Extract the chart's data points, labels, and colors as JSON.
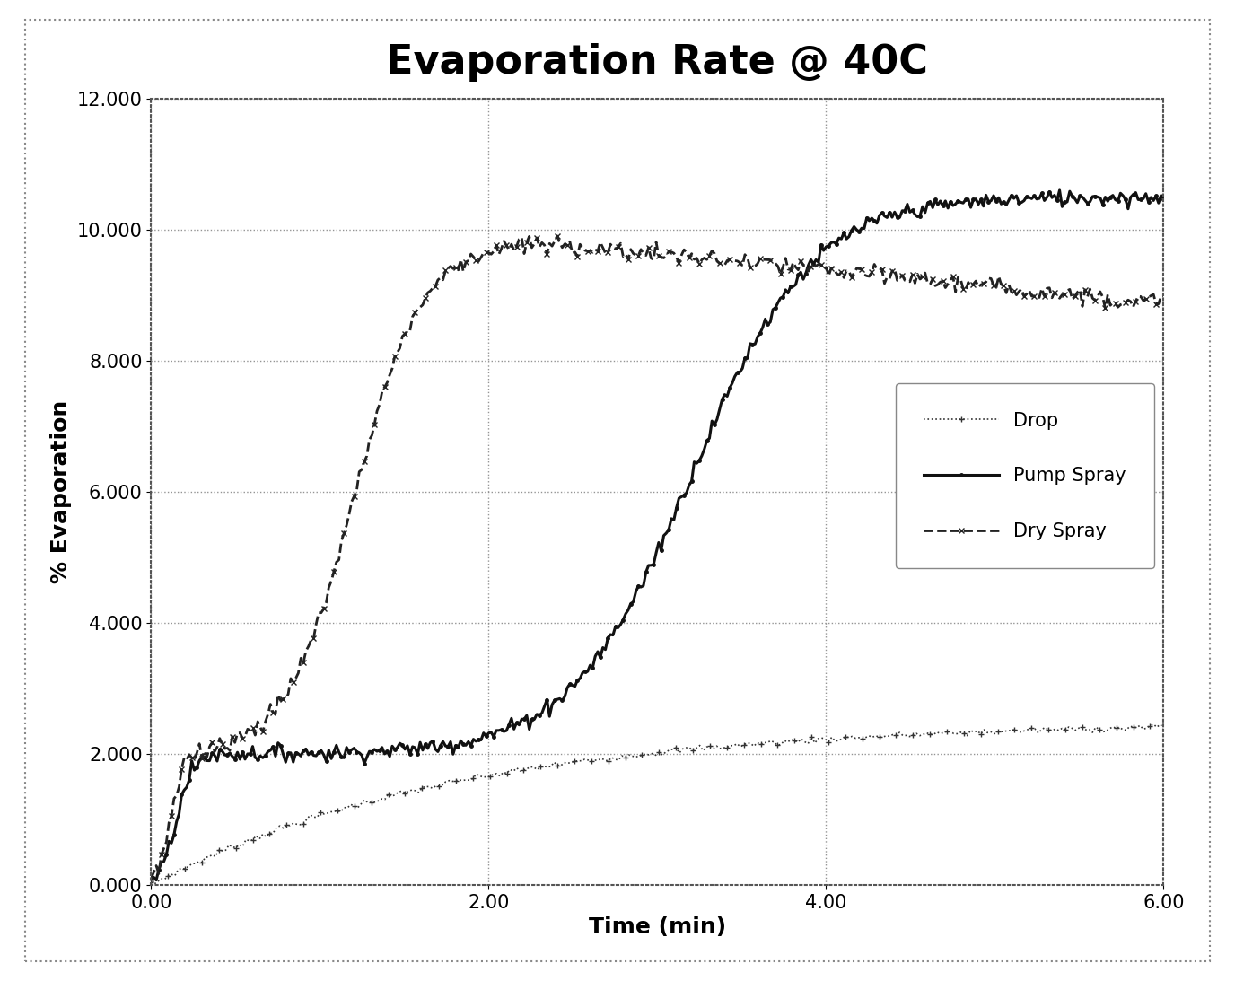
{
  "title": "Evaporation Rate @ 40C",
  "xlabel": "Time (min)",
  "ylabel": "% Evaporation",
  "xlim": [
    0.0,
    6.0
  ],
  "ylim": [
    0.0,
    12.0
  ],
  "xticks": [
    0.0,
    2.0,
    4.0,
    6.0
  ],
  "yticks": [
    0.0,
    2.0,
    4.0,
    6.0,
    8.0,
    10.0,
    12.0
  ],
  "xtick_labels": [
    "0.00",
    "2.00",
    "4.00",
    "6.00"
  ],
  "ytick_labels": [
    "0.000",
    "2.000",
    "4.000",
    "6.000",
    "8.000",
    "10.000",
    "12.000"
  ],
  "background_color": "#ffffff",
  "plot_bg_color": "#ffffff",
  "grid_color": "#888888",
  "title_fontsize": 32,
  "label_fontsize": 18,
  "tick_fontsize": 15,
  "legend_fontsize": 15
}
